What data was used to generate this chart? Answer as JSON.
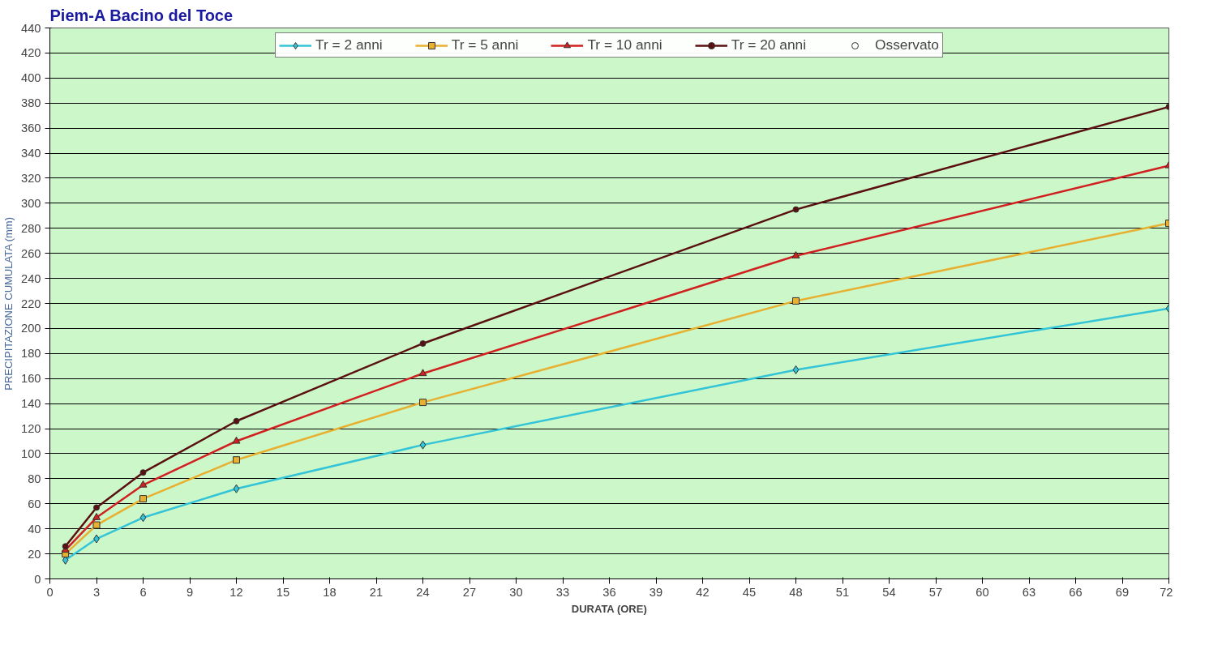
{
  "chart_data": {
    "type": "line",
    "title": "Piem-A Bacino del Toce",
    "xlabel": "DURATA (ORE)",
    "ylabel": "PRECIPITAZIONE CUMULATA (mm)",
    "x": [
      1,
      3,
      6,
      12,
      24,
      48,
      72
    ],
    "series": [
      {
        "name": "Tr = 2 anni",
        "color": "#33c4d8",
        "marker": "diamond",
        "values": [
          15,
          32,
          49,
          72,
          107,
          167,
          216
        ]
      },
      {
        "name": "Tr = 5 anni",
        "color": "#e8b030",
        "marker": "square",
        "values": [
          20,
          43,
          64,
          95,
          141,
          222,
          284
        ]
      },
      {
        "name": "Tr = 10 anni",
        "color": "#d02020",
        "marker": "triangle",
        "values": [
          23,
          49,
          75,
          110,
          164,
          258,
          330
        ]
      },
      {
        "name": "Tr = 20 anni",
        "color": "#5a1010",
        "marker": "circle",
        "values": [
          26,
          57,
          85,
          126,
          188,
          295,
          377
        ]
      },
      {
        "name": "Osservato",
        "type": "scatter",
        "color": "#333333",
        "marker": "circle",
        "values": [
          null,
          null,
          null,
          null,
          null,
          null,
          null
        ]
      }
    ],
    "xlim": [
      0,
      72
    ],
    "xticks": [
      0,
      3,
      6,
      9,
      12,
      15,
      18,
      21,
      24,
      27,
      30,
      33,
      36,
      39,
      42,
      45,
      48,
      51,
      54,
      57,
      60,
      63,
      66,
      69,
      72
    ],
    "ylim": [
      0,
      440
    ],
    "yticks": [
      0,
      20,
      40,
      60,
      80,
      100,
      120,
      140,
      160,
      180,
      200,
      220,
      240,
      260,
      280,
      300,
      320,
      340,
      360,
      380,
      400,
      420,
      440
    ],
    "grid": "y",
    "legend": "top"
  }
}
